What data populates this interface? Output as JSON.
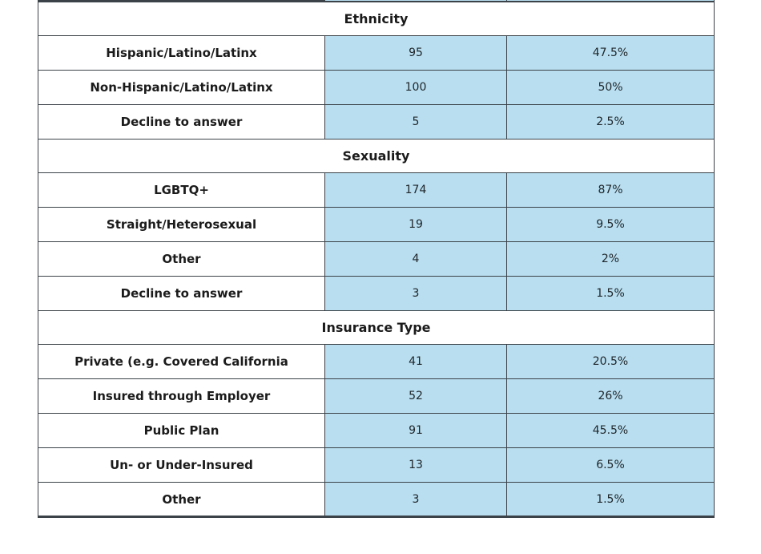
{
  "table": {
    "columns": [
      "label",
      "count",
      "percent"
    ],
    "sections": [
      {
        "title": "Ethnicity",
        "rows": [
          {
            "label": "Hispanic/Latino/Latinx",
            "count": "95",
            "percent": "47.5%"
          },
          {
            "label": "Non-Hispanic/Latino/Latinx",
            "count": "100",
            "percent": "50%"
          },
          {
            "label": "Decline to answer",
            "count": "5",
            "percent": "2.5%"
          }
        ]
      },
      {
        "title": "Sexuality",
        "rows": [
          {
            "label": "LGBTQ+",
            "count": "174",
            "percent": "87%"
          },
          {
            "label": "Straight/Heterosexual",
            "count": "19",
            "percent": "9.5%"
          },
          {
            "label": "Other",
            "count": "4",
            "percent": "2%"
          },
          {
            "label": "Decline to answer",
            "count": "3",
            "percent": "1.5%"
          }
        ]
      },
      {
        "title": "Insurance Type",
        "rows": [
          {
            "label": "Private (e.g. Covered California",
            "count": "41",
            "percent": "20.5%"
          },
          {
            "label": "Insured through Employer",
            "count": "52",
            "percent": "26%"
          },
          {
            "label": "Public Plan",
            "count": "91",
            "percent": "45.5%"
          },
          {
            "label": "Un- or Under-Insured",
            "count": "13",
            "percent": "6.5%"
          },
          {
            "label": "Other",
            "count": "3",
            "percent": "1.5%"
          }
        ]
      }
    ]
  },
  "colors": {
    "cell_fill_blue": "#b8def0",
    "border_dark": "#3b4248",
    "text_dark": "#1b1b1b",
    "page_background": "#ffffff"
  }
}
